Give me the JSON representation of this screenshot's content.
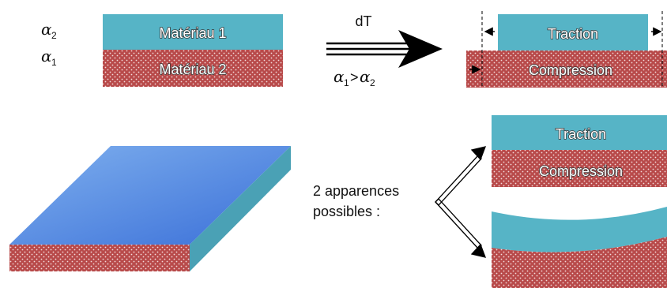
{
  "colors": {
    "material_1": "#56b4c6",
    "material_2": "#b84a4a",
    "dots": "#f3dada",
    "plate_top_light": "#7fb0ee",
    "plate_top_dark": "#3a6fd8",
    "plate_side": "#4aa1b5",
    "arrow": "#000000"
  },
  "coefficients": {
    "symbol": "α",
    "top_index": "2",
    "bottom_index": "1",
    "inequality_left_index": "1",
    "inequality_op": ">",
    "inequality_right_index": "2"
  },
  "bilayer": {
    "layer_1_label": "Matériau 1",
    "layer_2_label": "Matériau 2"
  },
  "process": {
    "label": "dT"
  },
  "result": {
    "top_label": "Traction",
    "bottom_label": "Compression"
  },
  "outcomes": {
    "caption_line_1": "2 apparences",
    "caption_line_2": "possibles :",
    "option_1_top": "Traction",
    "option_1_bottom": "Compression"
  }
}
